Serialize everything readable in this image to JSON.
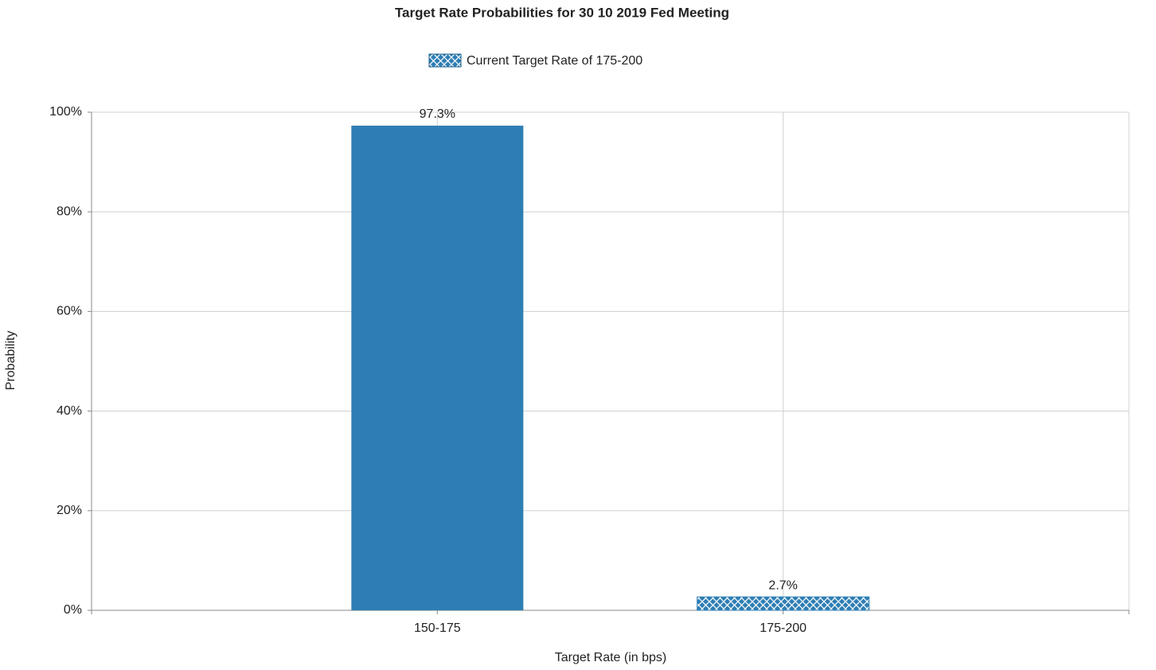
{
  "chart_data": {
    "type": "bar",
    "title": "Target Rate Probabilities for 30 10 2019 Fed Meeting",
    "x_label": "Target Rate (in bps)",
    "y_label": "Probability",
    "categories": [
      "150-175",
      "175-200"
    ],
    "values": [
      97.3,
      2.7
    ],
    "value_labels": [
      "97.3%",
      "2.7%"
    ],
    "color": "#2e7eb4",
    "highlight": {
      "name": "Current Target Rate of 175-200",
      "category_index": 1,
      "pattern": "crosshatch"
    },
    "ylim": [
      0,
      100
    ],
    "yticks": [
      {
        "value": 0,
        "label": "0%"
      },
      {
        "value": 20,
        "label": "20%"
      },
      {
        "value": 40,
        "label": "40%"
      },
      {
        "value": 60,
        "label": "60%"
      },
      {
        "value": 80,
        "label": "80%"
      },
      {
        "value": 100,
        "label": "100%"
      }
    ],
    "grid": true
  }
}
